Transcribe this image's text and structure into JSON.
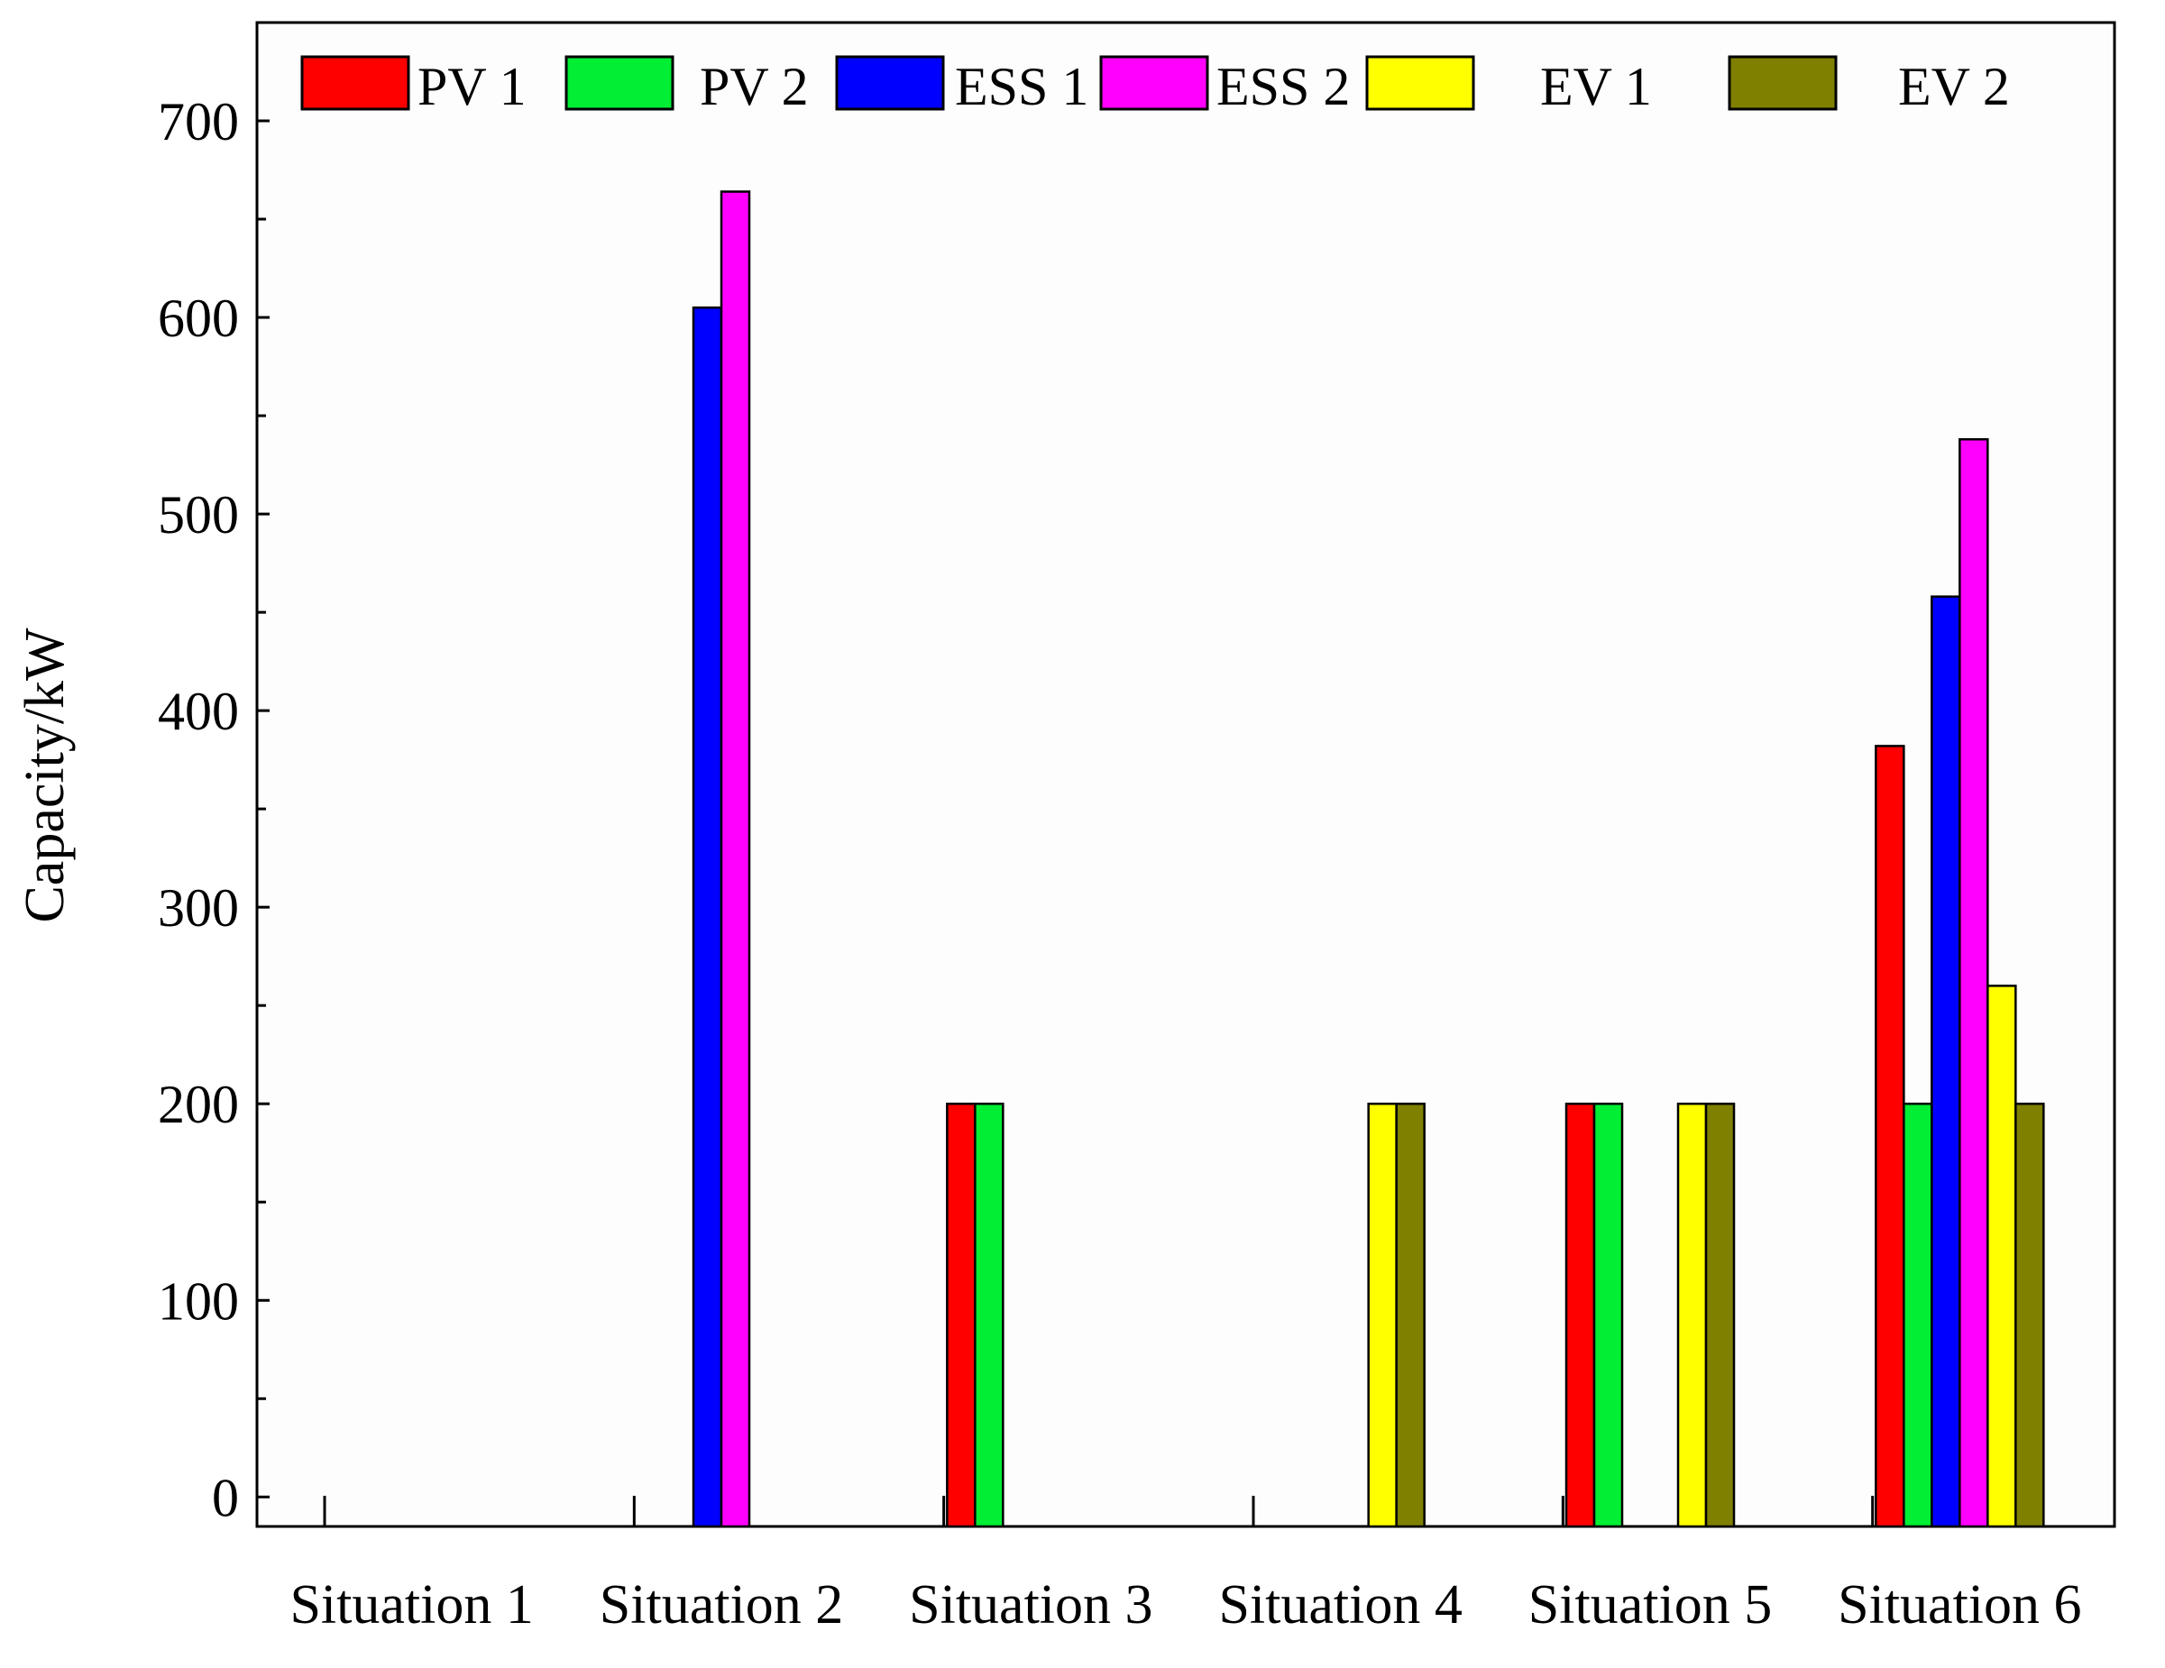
{
  "chart_data": {
    "type": "bar",
    "title": "",
    "xlabel": "",
    "ylabel": "Capacity/kW",
    "ylim": [
      -15,
      750
    ],
    "yticks": [
      0,
      100,
      200,
      300,
      400,
      500,
      600,
      700
    ],
    "ytick_labels": [
      "0",
      "100",
      "200",
      "300",
      "400",
      "500",
      "600",
      "700"
    ],
    "grid": false,
    "legend_position": "top",
    "categories": [
      "Situation 1",
      "Situation 2",
      "Situation 3",
      "Situation 4",
      "Situation 5",
      "Situation 6"
    ],
    "series": [
      {
        "name": "PV 1",
        "color": "#ff0000",
        "values": [
          0,
          0,
          200,
          0,
          200,
          382
        ]
      },
      {
        "name": "PV 2",
        "color": "#00ee33",
        "values": [
          0,
          0,
          200,
          0,
          200,
          200
        ]
      },
      {
        "name": "ESS 1",
        "color": "#0000ff",
        "values": [
          0,
          605,
          0,
          0,
          0,
          458
        ]
      },
      {
        "name": "ESS 2",
        "color": "#ff00ff",
        "values": [
          0,
          664,
          0,
          0,
          0,
          538
        ]
      },
      {
        "name": "EV 1",
        "color": "#ffff00",
        "values": [
          0,
          0,
          0,
          200,
          200,
          260
        ]
      },
      {
        "name": "EV 2",
        "color": "#808000",
        "values": [
          0,
          0,
          0,
          200,
          200,
          200
        ]
      }
    ]
  }
}
